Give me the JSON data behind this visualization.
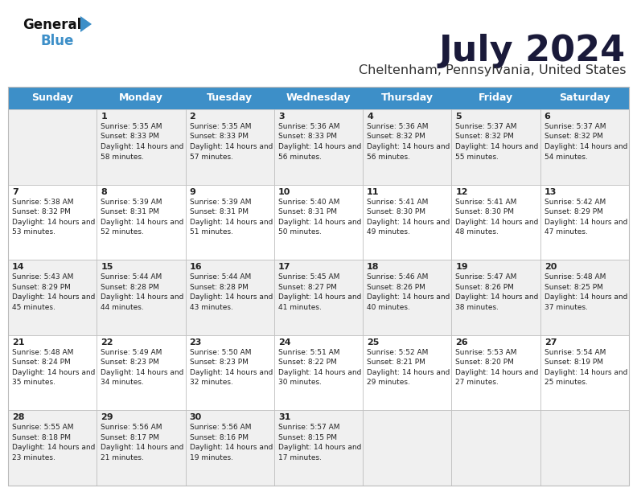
{
  "title": "July 2024",
  "subtitle": "Cheltenham, Pennsylvania, United States",
  "header_color": "#3d8fc8",
  "header_text_color": "#ffffff",
  "bg_color": "#ffffff",
  "row_alt_color": "#f0f0f0",
  "text_color": "#222222",
  "border_color": "#bbbbbb",
  "days_of_week": [
    "Sunday",
    "Monday",
    "Tuesday",
    "Wednesday",
    "Thursday",
    "Friday",
    "Saturday"
  ],
  "weeks": [
    [
      {
        "day": "",
        "sunrise": "",
        "sunset": "",
        "daylight": ""
      },
      {
        "day": "1",
        "sunrise": "5:35 AM",
        "sunset": "8:33 PM",
        "daylight": "14 hours and 58 minutes."
      },
      {
        "day": "2",
        "sunrise": "5:35 AM",
        "sunset": "8:33 PM",
        "daylight": "14 hours and 57 minutes."
      },
      {
        "day": "3",
        "sunrise": "5:36 AM",
        "sunset": "8:33 PM",
        "daylight": "14 hours and 56 minutes."
      },
      {
        "day": "4",
        "sunrise": "5:36 AM",
        "sunset": "8:32 PM",
        "daylight": "14 hours and 56 minutes."
      },
      {
        "day": "5",
        "sunrise": "5:37 AM",
        "sunset": "8:32 PM",
        "daylight": "14 hours and 55 minutes."
      },
      {
        "day": "6",
        "sunrise": "5:37 AM",
        "sunset": "8:32 PM",
        "daylight": "14 hours and 54 minutes."
      }
    ],
    [
      {
        "day": "7",
        "sunrise": "5:38 AM",
        "sunset": "8:32 PM",
        "daylight": "14 hours and 53 minutes."
      },
      {
        "day": "8",
        "sunrise": "5:39 AM",
        "sunset": "8:31 PM",
        "daylight": "14 hours and 52 minutes."
      },
      {
        "day": "9",
        "sunrise": "5:39 AM",
        "sunset": "8:31 PM",
        "daylight": "14 hours and 51 minutes."
      },
      {
        "day": "10",
        "sunrise": "5:40 AM",
        "sunset": "8:31 PM",
        "daylight": "14 hours and 50 minutes."
      },
      {
        "day": "11",
        "sunrise": "5:41 AM",
        "sunset": "8:30 PM",
        "daylight": "14 hours and 49 minutes."
      },
      {
        "day": "12",
        "sunrise": "5:41 AM",
        "sunset": "8:30 PM",
        "daylight": "14 hours and 48 minutes."
      },
      {
        "day": "13",
        "sunrise": "5:42 AM",
        "sunset": "8:29 PM",
        "daylight": "14 hours and 47 minutes."
      }
    ],
    [
      {
        "day": "14",
        "sunrise": "5:43 AM",
        "sunset": "8:29 PM",
        "daylight": "14 hours and 45 minutes."
      },
      {
        "day": "15",
        "sunrise": "5:44 AM",
        "sunset": "8:28 PM",
        "daylight": "14 hours and 44 minutes."
      },
      {
        "day": "16",
        "sunrise": "5:44 AM",
        "sunset": "8:28 PM",
        "daylight": "14 hours and 43 minutes."
      },
      {
        "day": "17",
        "sunrise": "5:45 AM",
        "sunset": "8:27 PM",
        "daylight": "14 hours and 41 minutes."
      },
      {
        "day": "18",
        "sunrise": "5:46 AM",
        "sunset": "8:26 PM",
        "daylight": "14 hours and 40 minutes."
      },
      {
        "day": "19",
        "sunrise": "5:47 AM",
        "sunset": "8:26 PM",
        "daylight": "14 hours and 38 minutes."
      },
      {
        "day": "20",
        "sunrise": "5:48 AM",
        "sunset": "8:25 PM",
        "daylight": "14 hours and 37 minutes."
      }
    ],
    [
      {
        "day": "21",
        "sunrise": "5:48 AM",
        "sunset": "8:24 PM",
        "daylight": "14 hours and 35 minutes."
      },
      {
        "day": "22",
        "sunrise": "5:49 AM",
        "sunset": "8:23 PM",
        "daylight": "14 hours and 34 minutes."
      },
      {
        "day": "23",
        "sunrise": "5:50 AM",
        "sunset": "8:23 PM",
        "daylight": "14 hours and 32 minutes."
      },
      {
        "day": "24",
        "sunrise": "5:51 AM",
        "sunset": "8:22 PM",
        "daylight": "14 hours and 30 minutes."
      },
      {
        "day": "25",
        "sunrise": "5:52 AM",
        "sunset": "8:21 PM",
        "daylight": "14 hours and 29 minutes."
      },
      {
        "day": "26",
        "sunrise": "5:53 AM",
        "sunset": "8:20 PM",
        "daylight": "14 hours and 27 minutes."
      },
      {
        "day": "27",
        "sunrise": "5:54 AM",
        "sunset": "8:19 PM",
        "daylight": "14 hours and 25 minutes."
      }
    ],
    [
      {
        "day": "28",
        "sunrise": "5:55 AM",
        "sunset": "8:18 PM",
        "daylight": "14 hours and 23 minutes."
      },
      {
        "day": "29",
        "sunrise": "5:56 AM",
        "sunset": "8:17 PM",
        "daylight": "14 hours and 21 minutes."
      },
      {
        "day": "30",
        "sunrise": "5:56 AM",
        "sunset": "8:16 PM",
        "daylight": "14 hours and 19 minutes."
      },
      {
        "day": "31",
        "sunrise": "5:57 AM",
        "sunset": "8:15 PM",
        "daylight": "14 hours and 17 minutes."
      },
      {
        "day": "",
        "sunrise": "",
        "sunset": "",
        "daylight": ""
      },
      {
        "day": "",
        "sunrise": "",
        "sunset": "",
        "daylight": ""
      },
      {
        "day": "",
        "sunrise": "",
        "sunset": "",
        "daylight": ""
      }
    ]
  ],
  "logo_general_color": "#111111",
  "logo_blue_color": "#3d8fc8",
  "logo_triangle_color": "#3d8fc8",
  "title_color": "#1a1a3a",
  "subtitle_color": "#333333"
}
